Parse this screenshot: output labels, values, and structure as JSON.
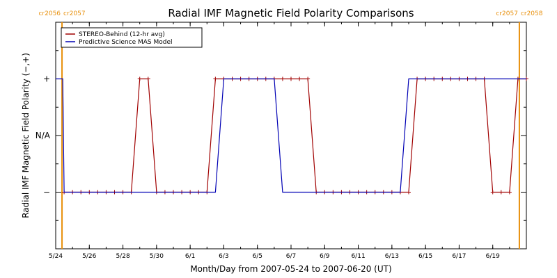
{
  "chart_data": {
    "type": "line",
    "title": "Radial IMF Magnetic Field Polarity Comparisons",
    "xlabel": "Month/Day from 2007-05-24 to 2007-06-20 (UT)",
    "ylabel": "Radial IMF Magnetic Field Polarity (−,+)",
    "xlim": [
      "2007-05-24",
      "2007-06-21"
    ],
    "ylim": [
      -2,
      2
    ],
    "x_ticks": [
      "5/24",
      "5/26",
      "5/28",
      "5/30",
      "6/1",
      "6/3",
      "6/5",
      "6/7",
      "6/9",
      "6/11",
      "6/13",
      "6/15",
      "6/17",
      "6/19"
    ],
    "x_tick_dates": [
      "2007-05-24",
      "2007-05-26",
      "2007-05-28",
      "2007-05-30",
      "2007-06-01",
      "2007-06-03",
      "2007-06-05",
      "2007-06-07",
      "2007-06-09",
      "2007-06-11",
      "2007-06-13",
      "2007-06-15",
      "2007-06-17",
      "2007-06-19"
    ],
    "y_ticks": [
      {
        "value": 1,
        "label": "+"
      },
      {
        "value": 0,
        "label": "N/A"
      },
      {
        "value": -1,
        "label": "−"
      }
    ],
    "legend_position": "top-left",
    "series": [
      {
        "name": "STEREO-Behind (12-hr avg)",
        "color": "#a00000",
        "marker": "plus",
        "x": [
          "2007-05-24 12:00",
          "2007-05-25 00:00",
          "2007-05-25 12:00",
          "2007-05-26 00:00",
          "2007-05-26 12:00",
          "2007-05-27 00:00",
          "2007-05-27 12:00",
          "2007-05-28 00:00",
          "2007-05-28 12:00",
          "2007-05-29 00:00",
          "2007-05-29 12:00",
          "2007-05-30 00:00",
          "2007-05-30 12:00",
          "2007-05-31 00:00",
          "2007-05-31 12:00",
          "2007-06-01 00:00",
          "2007-06-01 12:00",
          "2007-06-02 00:00",
          "2007-06-02 12:00",
          "2007-06-03 00:00",
          "2007-06-03 12:00",
          "2007-06-04 00:00",
          "2007-06-04 12:00",
          "2007-06-05 00:00",
          "2007-06-05 12:00",
          "2007-06-06 00:00",
          "2007-06-06 12:00",
          "2007-06-07 00:00",
          "2007-06-07 12:00",
          "2007-06-08 00:00",
          "2007-06-08 12:00",
          "2007-06-09 00:00",
          "2007-06-09 12:00",
          "2007-06-10 00:00",
          "2007-06-10 12:00",
          "2007-06-11 00:00",
          "2007-06-11 12:00",
          "2007-06-12 00:00",
          "2007-06-12 12:00",
          "2007-06-13 00:00",
          "2007-06-13 12:00",
          "2007-06-14 00:00",
          "2007-06-14 12:00",
          "2007-06-15 00:00",
          "2007-06-15 12:00",
          "2007-06-16 00:00",
          "2007-06-16 12:00",
          "2007-06-17 00:00",
          "2007-06-17 12:00",
          "2007-06-18 00:00",
          "2007-06-18 12:00",
          "2007-06-19 00:00",
          "2007-06-19 12:00",
          "2007-06-20 00:00",
          "2007-06-20 12:00",
          "2007-06-21 00:00"
        ],
        "y": [
          -1,
          -1,
          -1,
          -1,
          -1,
          -1,
          -1,
          -1,
          -1,
          1,
          1,
          -1,
          -1,
          -1,
          -1,
          -1,
          -1,
          -1,
          1,
          1,
          1,
          1,
          1,
          1,
          1,
          1,
          1,
          1,
          1,
          1,
          -1,
          -1,
          -1,
          -1,
          -1,
          -1,
          -1,
          -1,
          -1,
          -1,
          -1,
          -1,
          1,
          1,
          1,
          1,
          1,
          1,
          1,
          1,
          1,
          -1,
          -1,
          -1,
          1,
          1
        ]
      },
      {
        "name": "Predictive Science MAS Model",
        "color": "#0000b4",
        "marker": "none",
        "x": [
          "2007-05-24 00:00",
          "2007-05-24 10:00",
          "2007-05-24 12:00",
          "2007-06-02 12:00",
          "2007-06-03 00:00",
          "2007-06-06 00:00",
          "2007-06-06 12:00",
          "2007-06-13 12:00",
          "2007-06-14 00:00",
          "2007-06-21 00:00"
        ],
        "y": [
          1,
          1,
          -1,
          -1,
          1,
          1,
          -1,
          -1,
          1,
          1
        ]
      }
    ],
    "carrington_markers": [
      {
        "date": "2007-05-24 09:00",
        "left_label": "cr2056",
        "right_label": "cr2057",
        "color": "#e8900c"
      },
      {
        "date": "2007-06-20 14:00",
        "left_label": "cr2057",
        "right_label": "cr2058",
        "color": "#e8900c"
      }
    ]
  }
}
